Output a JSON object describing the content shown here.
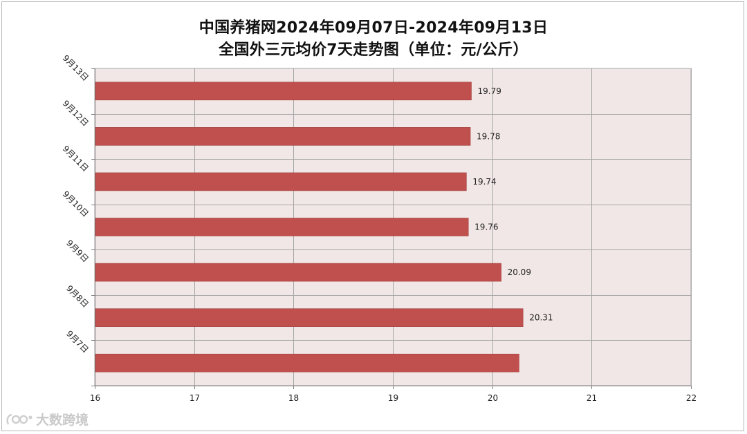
{
  "title_line1": "中国养猪网2024年09月07日-2024年09月13日",
  "title_line2": "全国外三元均价7天走势图（单位：元/公斤）",
  "watermark": "大数跨境",
  "colors": {
    "bar": "#c0504d",
    "plot_bg": "#f2e7e7",
    "grid": "#a6a6a6",
    "axis": "#7f7f7f"
  },
  "chart_data": {
    "type": "bar",
    "orientation": "horizontal",
    "title": "中国养猪网2024年09月07日-2024年09月13日 全国外三元均价7天走势图（单位：元/公斤）",
    "categories": [
      "9月13日",
      "9月12日",
      "9月11日",
      "9月10日",
      "9月9日",
      "9月8日",
      "9月7日"
    ],
    "values": [
      19.79,
      19.78,
      19.74,
      19.76,
      20.09,
      20.31,
      20.27
    ],
    "data_labels": [
      "19.79",
      "19.78",
      "19.74",
      "19.76",
      "20.09",
      "20.31",
      ""
    ],
    "xlim": [
      16,
      22
    ],
    "xticks": [
      16,
      17,
      18,
      19,
      20,
      21,
      22
    ],
    "xlabel": "",
    "ylabel": "",
    "grid": true,
    "legend": "none"
  }
}
